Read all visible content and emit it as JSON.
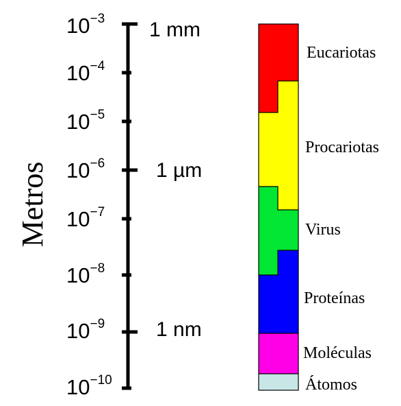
{
  "axis": {
    "title": "Metros",
    "ticks": [
      {
        "base": "10",
        "exp": "−3"
      },
      {
        "base": "10",
        "exp": "−4"
      },
      {
        "base": "10",
        "exp": "−5"
      },
      {
        "base": "10",
        "exp": "−6"
      },
      {
        "base": "10",
        "exp": "−7"
      },
      {
        "base": "10",
        "exp": "−8"
      },
      {
        "base": "10",
        "exp": "−9"
      },
      {
        "base": "10",
        "exp": "−10"
      }
    ],
    "reference_labels": [
      "1 mm",
      "1 µm",
      "1 nm"
    ]
  },
  "bands": [
    {
      "label": "Eucariotas",
      "color": "#ff0000"
    },
    {
      "label": "Procariotas",
      "color": "#ffff00"
    },
    {
      "label": "Virus",
      "color": "#00e633"
    },
    {
      "label": "Proteínas",
      "color": "#0000ff"
    },
    {
      "label": "Moléculas",
      "color": "#ff00e6"
    },
    {
      "label": "Átomos",
      "color": "#c8e6e6"
    }
  ]
}
